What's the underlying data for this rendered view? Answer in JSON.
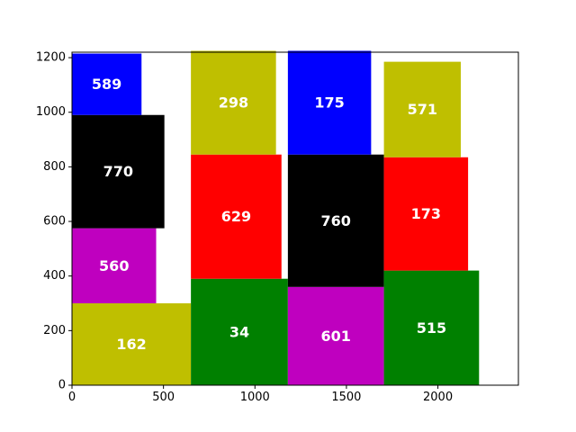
{
  "chart_data": {
    "type": "bar",
    "title": "",
    "xlabel": "",
    "ylabel": "",
    "xlim": [
      0,
      2440
    ],
    "ylim": [
      0,
      1220
    ],
    "grid": false,
    "xticks": [
      "0",
      "500",
      "1000",
      "1500",
      "2000"
    ],
    "yticks": [
      "0",
      "200",
      "400",
      "600",
      "800",
      "1000",
      "1200"
    ],
    "colors": {
      "blue": "#0000ff",
      "black": "#000000",
      "magenta": "#bf00bf",
      "olive": "#bfbf00",
      "red": "#ff0000",
      "green": "#008000"
    },
    "stacks": [
      {
        "x_start": 0,
        "segments": [
          {
            "label": "162",
            "width": 650,
            "height": 300,
            "color": "olive"
          },
          {
            "label": "560",
            "width": 460,
            "height": 275,
            "color": "magenta"
          },
          {
            "label": "770",
            "width": 505,
            "height": 415,
            "color": "black"
          },
          {
            "label": "589",
            "width": 380,
            "height": 225,
            "color": "blue"
          }
        ]
      },
      {
        "x_start": 650,
        "segments": [
          {
            "label": "34",
            "width": 530,
            "height": 390,
            "color": "green"
          },
          {
            "label": "629",
            "width": 495,
            "height": 455,
            "color": "red"
          },
          {
            "label": "298",
            "width": 465,
            "height": 380,
            "color": "olive"
          }
        ]
      },
      {
        "x_start": 1180,
        "segments": [
          {
            "label": "601",
            "width": 525,
            "height": 360,
            "color": "magenta"
          },
          {
            "label": "760",
            "width": 525,
            "height": 485,
            "color": "black"
          },
          {
            "label": "175",
            "width": 455,
            "height": 380,
            "color": "blue"
          }
        ]
      },
      {
        "x_start": 1705,
        "segments": [
          {
            "label": "515",
            "width": 520,
            "height": 420,
            "color": "green"
          },
          {
            "label": "173",
            "width": 460,
            "height": 415,
            "color": "red"
          },
          {
            "label": "571",
            "width": 420,
            "height": 350,
            "color": "olive"
          }
        ]
      }
    ]
  }
}
